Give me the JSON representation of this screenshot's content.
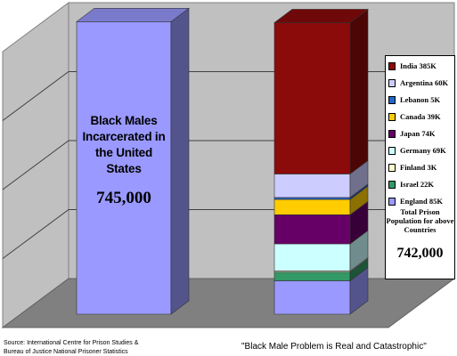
{
  "chart_data": {
    "type": "bar",
    "stacked": true,
    "grid": true,
    "legend_position": "right",
    "bar1": {
      "title": "Black Males Incarcerated in the United States",
      "value_label": "745,000",
      "value": 745000,
      "color": "#9999ff"
    },
    "bar2": {
      "series": [
        {
          "name": "India 385K",
          "value": 385,
          "color": "#8b0a0a"
        },
        {
          "name": "Argentina 60K",
          "value": 60,
          "color": "#ccccff"
        },
        {
          "name": "Lebanon 5K",
          "value": 5,
          "color": "#2266cc"
        },
        {
          "name": "Canada 39K",
          "value": 39,
          "color": "#ffcc00"
        },
        {
          "name": "Japan 74K",
          "value": 74,
          "color": "#660066"
        },
        {
          "name": "Germany 69K",
          "value": 69,
          "color": "#ccffff"
        },
        {
          "name": "Finland 3K",
          "value": 3,
          "color": "#ffffcc"
        },
        {
          "name": "Israel 22K",
          "value": 22,
          "color": "#339966"
        },
        {
          "name": "England 85K",
          "value": 85,
          "color": "#9999ff"
        }
      ],
      "total_label": "Total Prison Population for above Countries",
      "total_value": "742,000"
    },
    "ylim": [
      0,
      800
    ]
  },
  "source": {
    "line1": "Source: International Centre for Prison Studies &",
    "line2": "Bureau of Justice National Prisoner Statistics"
  },
  "caption": "\"Black Male Problem is Real and Catastrophic\""
}
